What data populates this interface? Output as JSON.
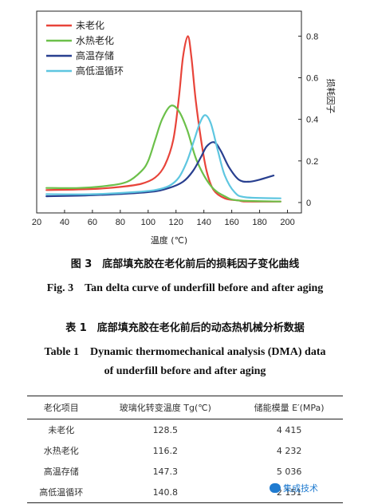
{
  "chart_data": {
    "type": "line",
    "xlabel": "温度 (℃)",
    "ylabel": "损耗因子",
    "xlim": [
      20,
      210
    ],
    "ylim": [
      -0.05,
      0.92
    ],
    "xticks": [
      20,
      40,
      60,
      80,
      100,
      120,
      140,
      160,
      180,
      200
    ],
    "yticks": [
      0,
      0.2,
      0.4,
      0.6,
      0.8
    ],
    "legend_position": "top-left",
    "grid": false,
    "series": [
      {
        "name": "未老化",
        "color": "#e8443a",
        "x": [
          27,
          60,
          80,
          95,
          105,
          112,
          118,
          122,
          125,
          128.5,
          131,
          134,
          138,
          142,
          147,
          155,
          165,
          170,
          195
        ],
        "y": [
          0.06,
          0.065,
          0.075,
          0.09,
          0.12,
          0.18,
          0.3,
          0.5,
          0.7,
          0.8,
          0.7,
          0.5,
          0.3,
          0.15,
          0.06,
          0.02,
          0.01,
          0.005,
          0.005
        ]
      },
      {
        "name": "水热老化",
        "color": "#6cc04a",
        "x": [
          27,
          50,
          70,
          85,
          95,
          100,
          105,
          110,
          116.2,
          122,
          128,
          135,
          145,
          155,
          165,
          195
        ],
        "y": [
          0.07,
          0.07,
          0.08,
          0.1,
          0.15,
          0.2,
          0.3,
          0.4,
          0.465,
          0.44,
          0.35,
          0.2,
          0.08,
          0.03,
          0.01,
          0.005
        ]
      },
      {
        "name": "高温存储",
        "color": "#283f8f",
        "x": [
          27,
          60,
          100,
          115,
          125,
          132,
          138,
          142,
          147.3,
          152,
          158,
          165,
          172,
          180,
          190
        ],
        "y": [
          0.03,
          0.035,
          0.05,
          0.07,
          0.1,
          0.15,
          0.22,
          0.27,
          0.29,
          0.25,
          0.17,
          0.11,
          0.1,
          0.11,
          0.13
        ]
      },
      {
        "name": "高低温循环",
        "color": "#5ec6e0",
        "x": [
          27,
          60,
          90,
          105,
          115,
          122,
          128,
          133,
          137,
          140.8,
          145,
          150,
          155,
          162,
          170,
          195
        ],
        "y": [
          0.04,
          0.04,
          0.05,
          0.06,
          0.08,
          0.12,
          0.2,
          0.3,
          0.38,
          0.42,
          0.38,
          0.25,
          0.13,
          0.05,
          0.025,
          0.02
        ]
      }
    ]
  },
  "figure": {
    "caption_cn": "图 3　底部填充胶在老化前后的损耗因子变化曲线",
    "caption_en": "Fig. 3　Tan delta curve of underfill before and after aging"
  },
  "table": {
    "caption_cn": "表 1　底部填充胶在老化前后的动态热机械分析数据",
    "caption_en_line1": "Table 1　Dynamic thermomechanical analysis (DMA) data",
    "caption_en_line2": "of underfill before and after aging",
    "headers": [
      "老化项目",
      "玻璃化转变温度 Tg(℃)",
      "储能模量 E′(MPa)"
    ],
    "rows": [
      [
        "未老化",
        "128.5",
        "4 415"
      ],
      [
        "水热老化",
        "116.2",
        "4 232"
      ],
      [
        "高温存储",
        "147.3",
        "5 036"
      ],
      [
        "高低温循环",
        "140.8",
        "2 151"
      ]
    ]
  },
  "watermark": {
    "text": "集成技术"
  }
}
